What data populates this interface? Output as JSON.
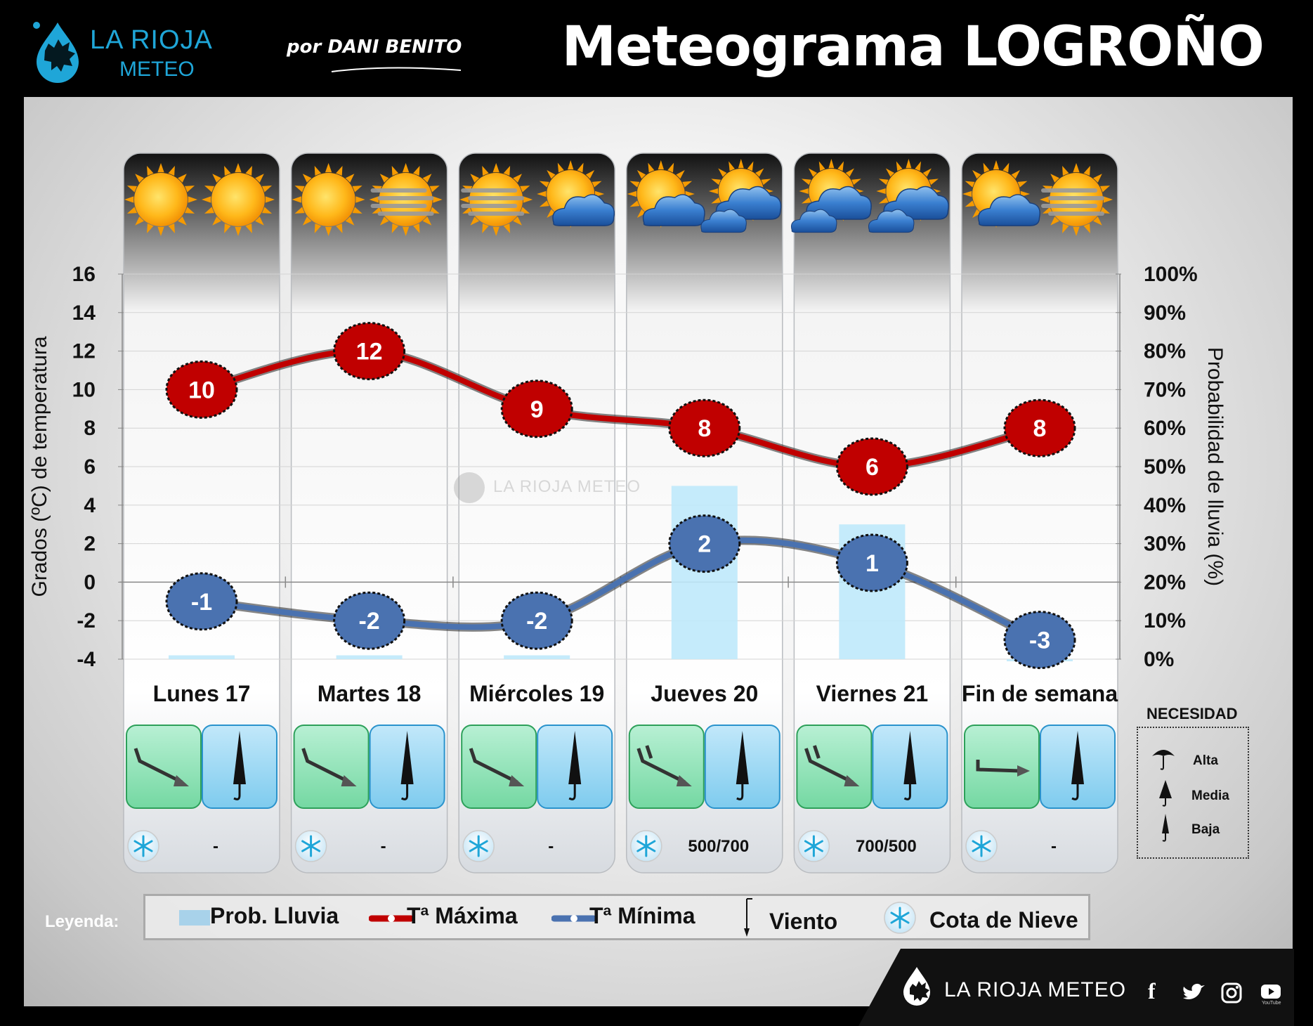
{
  "header": {
    "logo_line1": "LA RIOJA",
    "logo_line2": "METEO",
    "author": "por DANI BENITO",
    "title": "Meteograma LOGROÑO"
  },
  "chart_data": {
    "type": "line",
    "categories": [
      "Lunes 17",
      "Martes 18",
      "Miércoles 19",
      "Jueves 20",
      "Viernes 21",
      "Fin de semana"
    ],
    "series": [
      {
        "name": "Tª Máxima",
        "color": "#c00000",
        "values": [
          10,
          12,
          9,
          8,
          6,
          8
        ]
      },
      {
        "name": "Tª Mínima",
        "color": "#4a72b0",
        "values": [
          -1,
          -2,
          -2,
          2,
          1,
          -3
        ]
      },
      {
        "name": "Prob. Lluvia",
        "color": "#bfe9fb",
        "axis": "right",
        "values": [
          1,
          1,
          1,
          45,
          35,
          0
        ]
      }
    ],
    "ylabel": "Grados (ºC) de temperatura",
    "ylabel_right": "Probabilidad de lluvia (%)",
    "ylim": [
      -4,
      16
    ],
    "ylim_right": [
      0,
      100
    ],
    "yticks": [
      "16",
      "14",
      "12",
      "10",
      "8",
      "6",
      "4",
      "2",
      "0",
      "-2",
      "-4"
    ],
    "yticks_right": [
      "100%",
      "90%",
      "80%",
      "70%",
      "60%",
      "50%",
      "40%",
      "30%",
      "20%",
      "10%",
      "0%"
    ],
    "grid": true
  },
  "days": [
    {
      "label": "Lunes 17",
      "sky": [
        "sun",
        "sun"
      ],
      "snow_level": "-",
      "wind_dir": "NW",
      "umbrella": "Baja"
    },
    {
      "label": "Martes 18",
      "sky": [
        "sun",
        "sun-fog"
      ],
      "snow_level": "-",
      "wind_dir": "NW",
      "umbrella": "Baja"
    },
    {
      "label": "Miércoles 19",
      "sky": [
        "sun-fog",
        "sun-cloud"
      ],
      "snow_level": "-",
      "wind_dir": "NW",
      "umbrella": "Baja"
    },
    {
      "label": "Jueves 20",
      "sky": [
        "sun-cloud",
        "sun-clouds"
      ],
      "snow_level": "500/700",
      "wind_dir": "NW",
      "umbrella": "Baja"
    },
    {
      "label": "Viernes 21",
      "sky": [
        "sun-clouds",
        "sun-clouds"
      ],
      "snow_level": "700/500",
      "wind_dir": "NW",
      "umbrella": "Baja"
    },
    {
      "label": "Fin de semana",
      "sky": [
        "sun-cloud",
        "sun-fog"
      ],
      "snow_level": "-",
      "wind_dir": "W",
      "umbrella": "Baja"
    }
  ],
  "watermark": "LA RIOJA METEO",
  "necesidad": {
    "title": "NECESIDAD",
    "levels": [
      "Alta",
      "Media",
      "Baja"
    ]
  },
  "legend": {
    "title": "Leyenda:",
    "items": [
      "Prob. Lluvia",
      "Tª Máxima",
      "Tª Mínima",
      "Viento",
      "Cota de Nieve"
    ]
  },
  "footer": {
    "brand": "LA RIOJA METEO",
    "youtube": "YouTube"
  }
}
